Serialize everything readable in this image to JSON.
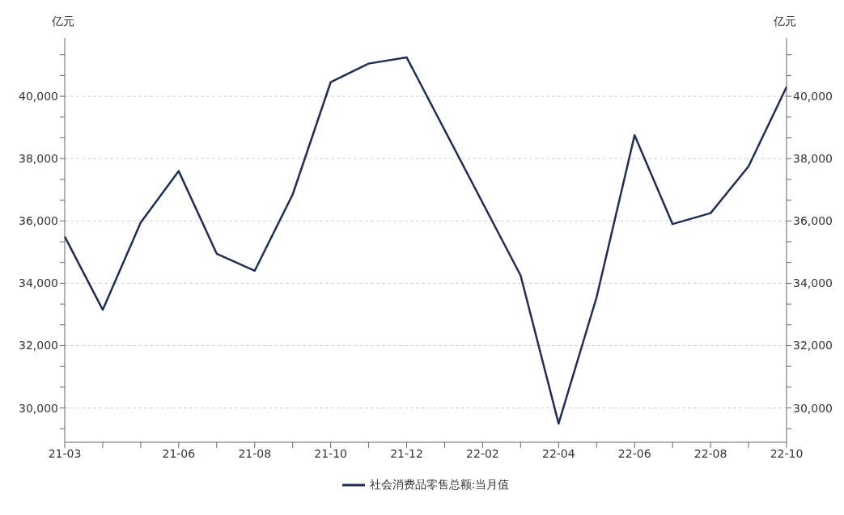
{
  "chart_data": {
    "type": "line",
    "ylabel": "亿元",
    "y2label": "亿元",
    "categories": [
      "21-03",
      null,
      null,
      "21-06",
      null,
      "21-08",
      null,
      "21-10",
      null,
      "21-12",
      null,
      "22-02",
      null,
      "22-04",
      null,
      "22-06",
      null,
      "22-08",
      null,
      "22-10"
    ],
    "series": [
      {
        "name": "社会消费品零售总额:当月值",
        "color": "#1f2d5a",
        "values": [
          35500,
          33150,
          35950,
          37600,
          34950,
          34400,
          36850,
          40450,
          41050,
          41250,
          null,
          null,
          34250,
          29500,
          33550,
          38750,
          35900,
          36250,
          37750,
          40300
        ]
      }
    ],
    "ylim": [
      28900,
      41870
    ],
    "yticks": [
      {
        "value": 29333,
        "label": null
      },
      {
        "value": 30000,
        "label": "30,000"
      },
      {
        "value": 30667,
        "label": null
      },
      {
        "value": 31333,
        "label": null
      },
      {
        "value": 32000,
        "label": "32,000"
      },
      {
        "value": 32667,
        "label": null
      },
      {
        "value": 33333,
        "label": null
      },
      {
        "value": 34000,
        "label": "34,000"
      },
      {
        "value": 34667,
        "label": null
      },
      {
        "value": 35333,
        "label": null
      },
      {
        "value": 36000,
        "label": "36,000"
      },
      {
        "value": 36667,
        "label": null
      },
      {
        "value": 37333,
        "label": null
      },
      {
        "value": 38000,
        "label": "38,000"
      },
      {
        "value": 38667,
        "label": null
      },
      {
        "value": 39333,
        "label": null
      },
      {
        "value": 40000,
        "label": "40,000"
      },
      {
        "value": 40667,
        "label": null
      },
      {
        "value": 41333,
        "label": null
      }
    ],
    "y2lim": [
      28900,
      41870
    ],
    "y2ticks": [
      {
        "value": 29333,
        "label": null
      },
      {
        "value": 30000,
        "label": "30,000"
      },
      {
        "value": 30667,
        "label": null
      },
      {
        "value": 31333,
        "label": null
      },
      {
        "value": 32000,
        "label": "32,000"
      },
      {
        "value": 32667,
        "label": null
      },
      {
        "value": 33333,
        "label": null
      },
      {
        "value": 34000,
        "label": "34,000"
      },
      {
        "value": 34667,
        "label": null
      },
      {
        "value": 35333,
        "label": null
      },
      {
        "value": 36000,
        "label": "36,000"
      },
      {
        "value": 36667,
        "label": null
      },
      {
        "value": 37333,
        "label": null
      },
      {
        "value": 38000,
        "label": "38,000"
      },
      {
        "value": 38667,
        "label": null
      },
      {
        "value": 39333,
        "label": null
      },
      {
        "value": 40000,
        "label": "40,000"
      },
      {
        "value": 40667,
        "label": null
      },
      {
        "value": 41333,
        "label": null
      }
    ],
    "grid": "y",
    "legend": "bottom",
    "marker": "none",
    "line_style": "solid"
  }
}
